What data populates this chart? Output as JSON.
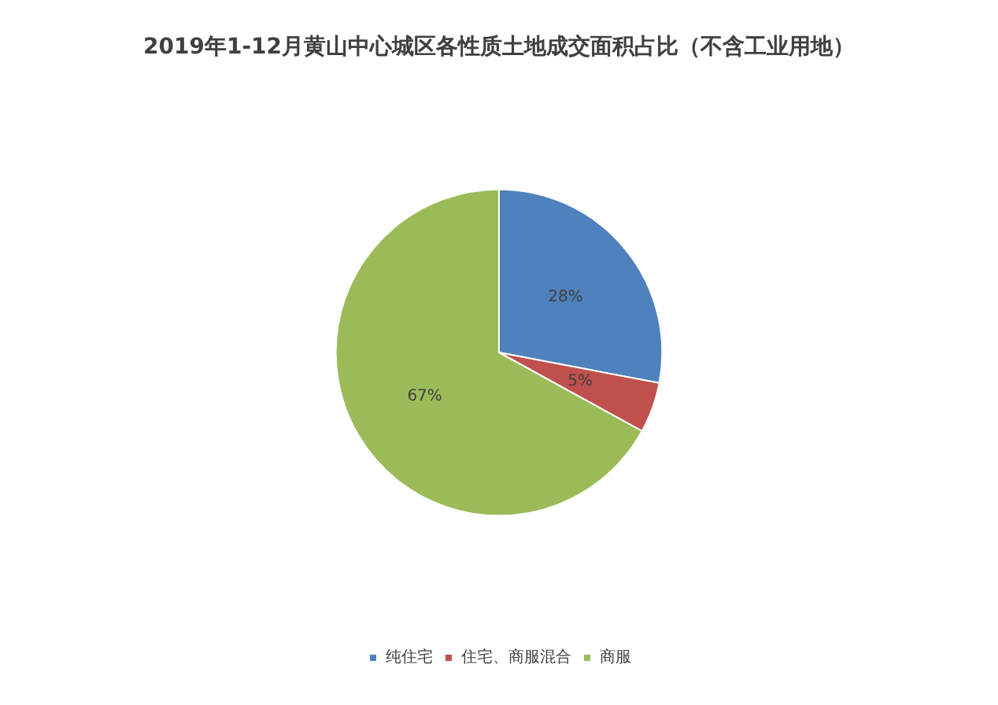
{
  "chart_data": {
    "type": "pie",
    "title": "2019年1-12月黄山中心城区各性质土地成交面积占比（不含工业用地）",
    "categories": [
      "纯住宅",
      "住宅、商服混合",
      "商服"
    ],
    "values": [
      28,
      5,
      67
    ],
    "colors": [
      "#4f81bd",
      "#c0504d",
      "#9bbb59"
    ],
    "value_labels": [
      "28%",
      "5%",
      "67%"
    ],
    "legend": "bottom"
  }
}
